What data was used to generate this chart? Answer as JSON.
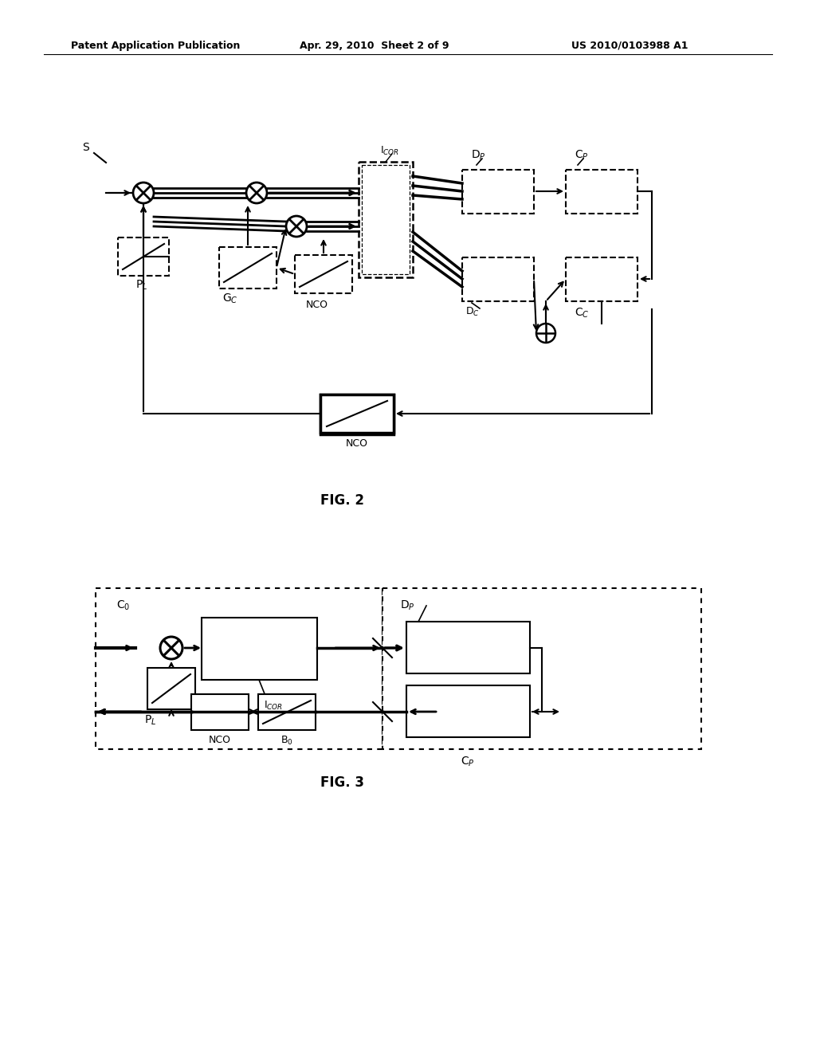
{
  "bg_color": "#ffffff",
  "header_left": "Patent Application Publication",
  "header_mid": "Apr. 29, 2010  Sheet 2 of 9",
  "header_right": "US 2010/0103988 A1",
  "fig2_label": "FIG. 2",
  "fig3_label": "FIG. 3"
}
